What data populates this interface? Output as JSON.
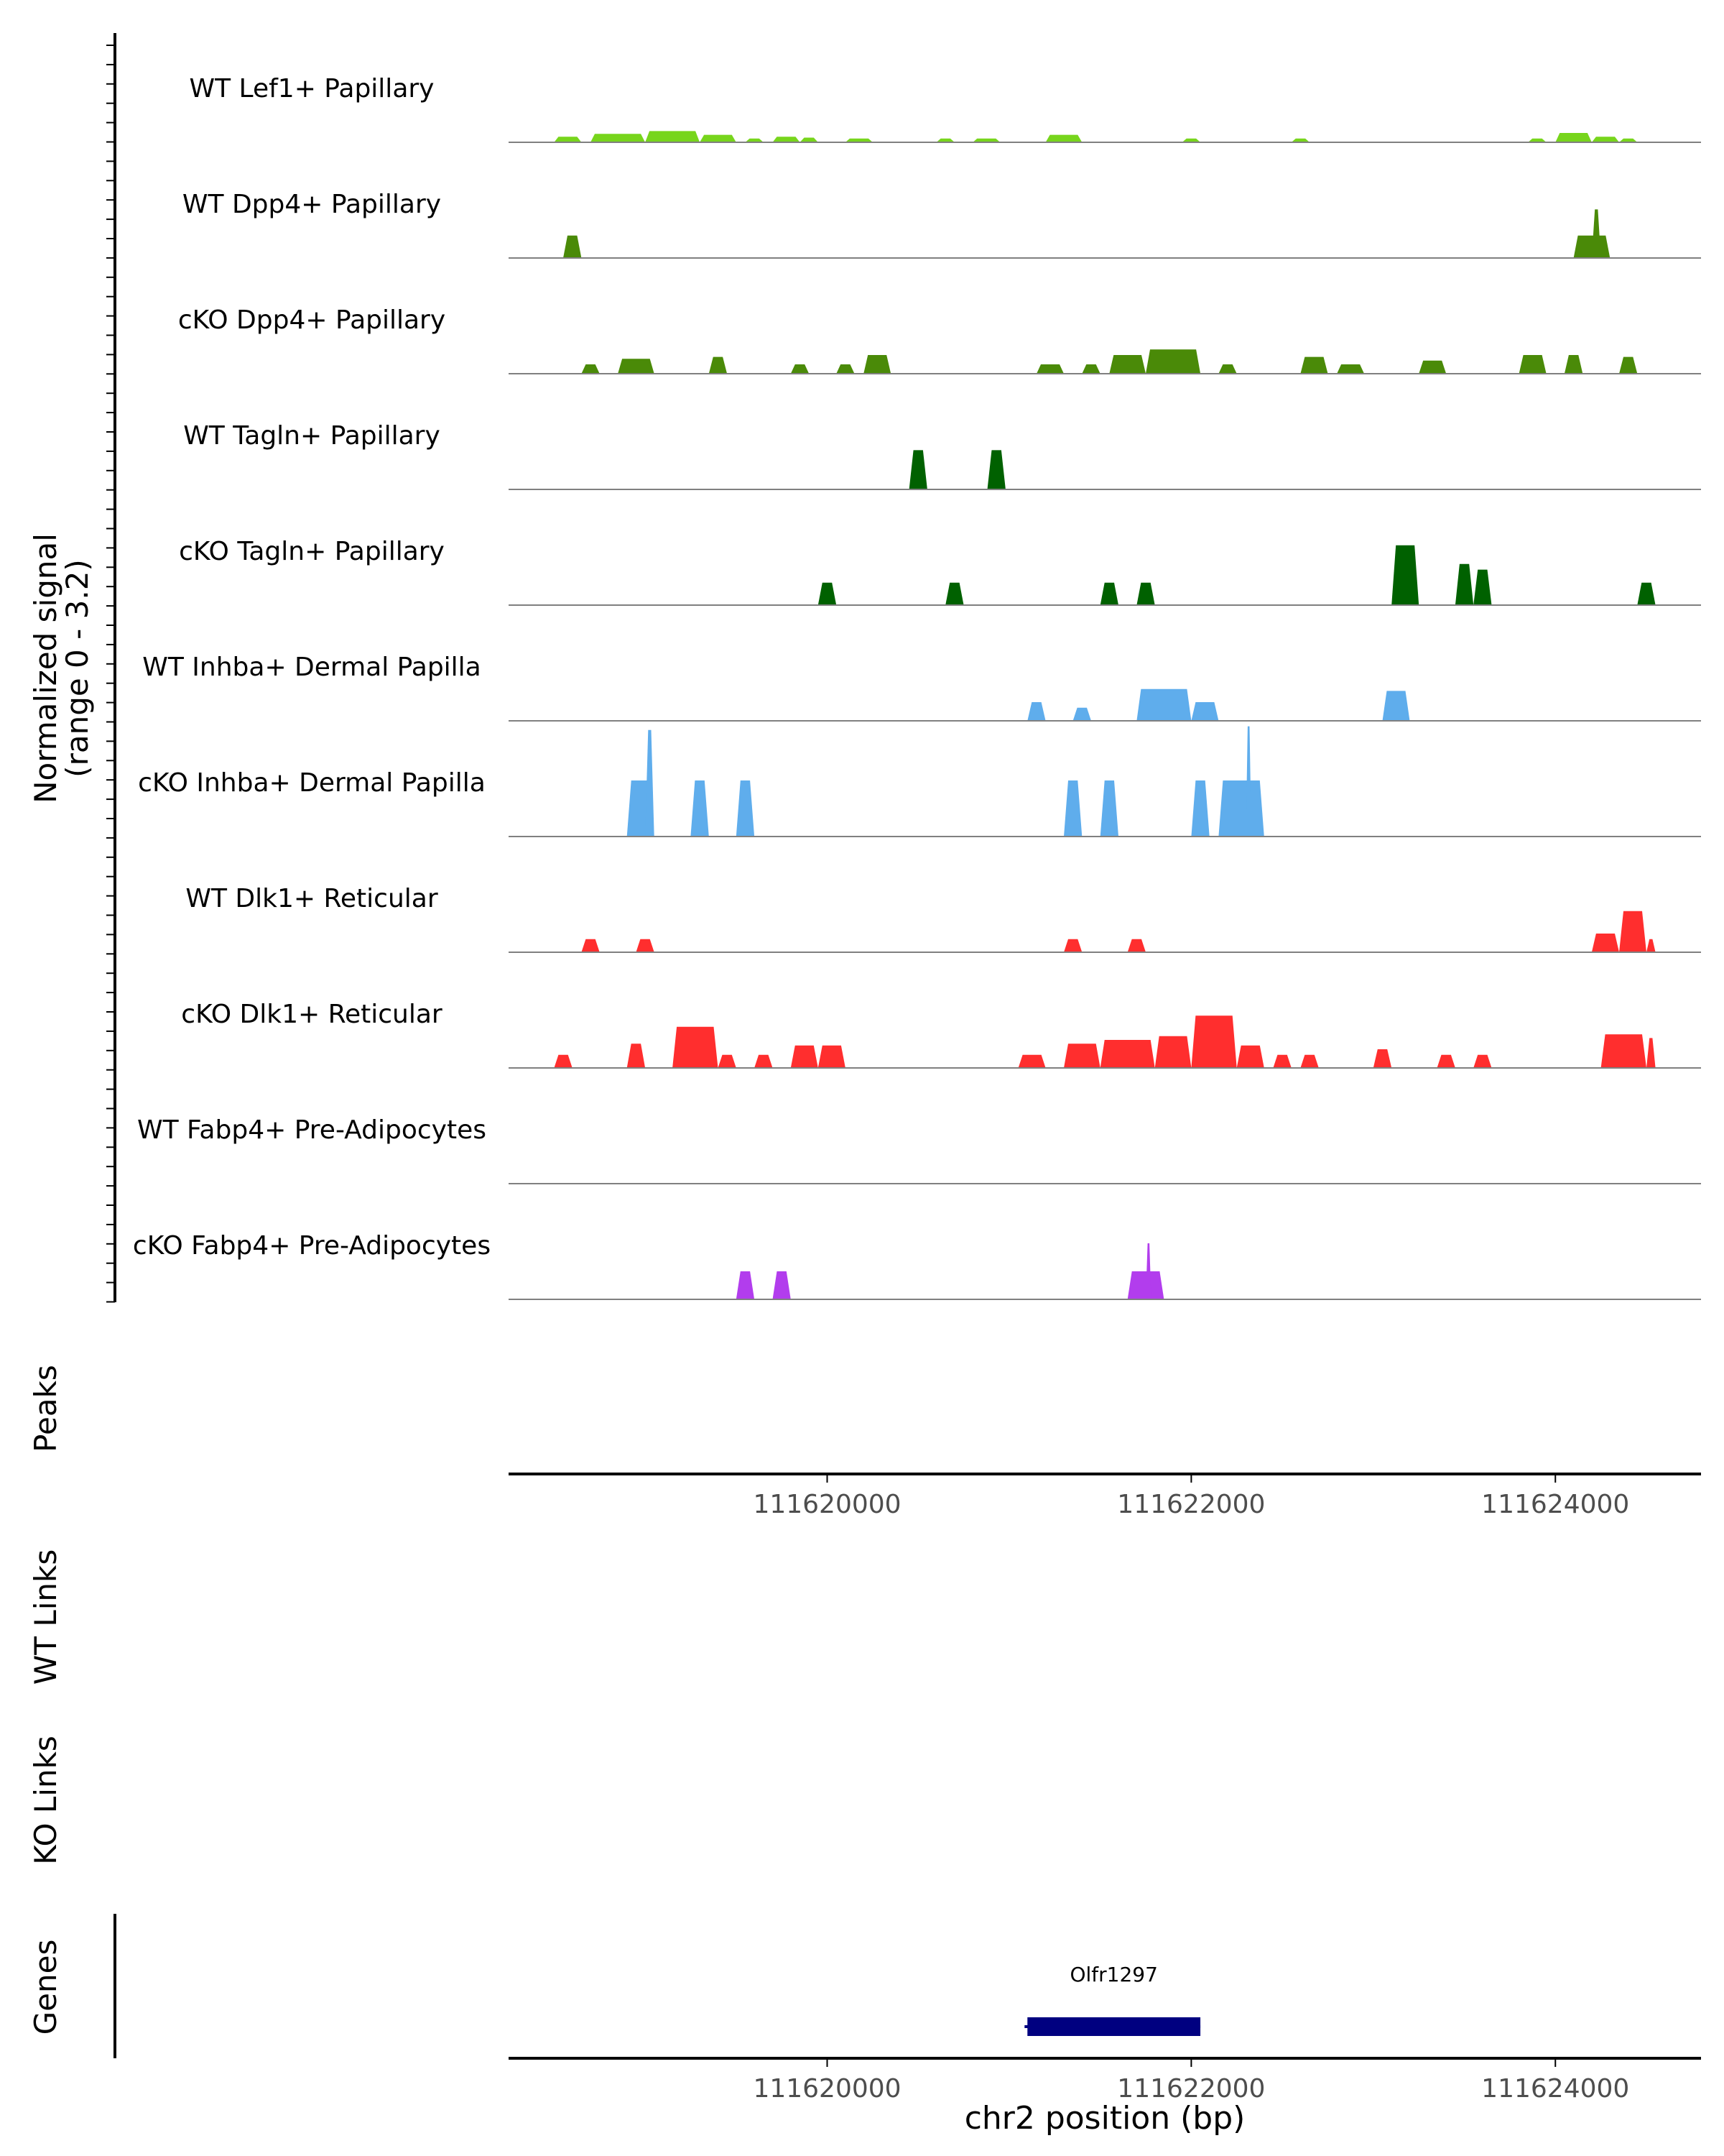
{
  "chart_data": {
    "type": "area",
    "title": "",
    "region": "chr2",
    "xlabel": "chr2 position (bp)",
    "xlim": [
      111618250,
      111624800
    ],
    "x_ticks": [
      111620000,
      111622000,
      111624000
    ],
    "x_tick_labels": [
      "111620000",
      "111622000",
      "111624000"
    ],
    "ylabel_line1": "Normalized signal",
    "ylabel_line2": "(range 0 - 3.2)",
    "ylim": [
      0,
      3.2
    ],
    "tracks": [
      {
        "name": "WT Lef1+ Papillary",
        "color": "#77d51c",
        "peaks": [
          [
            111618500,
            111618650,
            0.3
          ],
          [
            111618700,
            111619000,
            0.45
          ],
          [
            111619000,
            111619300,
            0.6
          ],
          [
            111619300,
            111619500,
            0.4
          ],
          [
            111619550,
            111619650,
            0.2
          ],
          [
            111619700,
            111619850,
            0.3
          ],
          [
            111619850,
            111619950,
            0.25
          ],
          [
            111620100,
            111620250,
            0.2
          ],
          [
            111620600,
            111620700,
            0.2
          ],
          [
            111620800,
            111620950,
            0.2
          ],
          [
            111621200,
            111621400,
            0.4
          ],
          [
            111621950,
            111622050,
            0.2
          ],
          [
            111622550,
            111622650,
            0.2
          ],
          [
            111623850,
            111623950,
            0.2
          ],
          [
            111624000,
            111624200,
            0.5
          ],
          [
            111624200,
            111624350,
            0.3
          ],
          [
            111624350,
            111624450,
            0.2
          ]
        ]
      },
      {
        "name": "WT Dpp4+ Papillary",
        "color": "#4a8a08",
        "peaks": [
          [
            111618550,
            111618650,
            1.2
          ],
          [
            111624100,
            111624300,
            1.2
          ],
          [
            111624200,
            111624250,
            2.6
          ]
        ]
      },
      {
        "name": "cKO Dpp4+ Papillary",
        "color": "#4a8a08",
        "peaks": [
          [
            111618650,
            111618750,
            0.5
          ],
          [
            111618850,
            111619050,
            0.8
          ],
          [
            111619350,
            111619450,
            0.9
          ],
          [
            111619800,
            111619900,
            0.5
          ],
          [
            111620050,
            111620150,
            0.5
          ],
          [
            111620200,
            111620350,
            1.0
          ],
          [
            111621150,
            111621300,
            0.5
          ],
          [
            111621400,
            111621500,
            0.5
          ],
          [
            111621550,
            111621750,
            1.0
          ],
          [
            111621750,
            111622050,
            1.3
          ],
          [
            111622150,
            111622250,
            0.5
          ],
          [
            111622600,
            111622750,
            0.9
          ],
          [
            111622800,
            111622950,
            0.5
          ],
          [
            111623250,
            111623400,
            0.7
          ],
          [
            111623800,
            111623950,
            1.0
          ],
          [
            111624050,
            111624150,
            1.0
          ],
          [
            111624350,
            111624450,
            0.9
          ]
        ]
      },
      {
        "name": "WT Tagln+ Papillary",
        "color": "#006100",
        "peaks": [
          [
            111620450,
            111620550,
            2.1
          ],
          [
            111620880,
            111620980,
            2.1
          ]
        ]
      },
      {
        "name": "cKO Tagln+ Papillary",
        "color": "#006100",
        "peaks": [
          [
            111619950,
            111620050,
            1.2
          ],
          [
            111620650,
            111620750,
            1.2
          ],
          [
            111621500,
            111621600,
            1.2
          ],
          [
            111621700,
            111621800,
            1.2
          ],
          [
            111623100,
            111623250,
            3.2
          ],
          [
            111623450,
            111623550,
            2.2
          ],
          [
            111623550,
            111623650,
            1.9
          ],
          [
            111624450,
            111624550,
            1.2
          ]
        ]
      },
      {
        "name": "WT Inhba+ Dermal Papilla",
        "color": "#5fadec",
        "peaks": [
          [
            111621100,
            111621200,
            1.0
          ],
          [
            111621350,
            111621450,
            0.7
          ],
          [
            111621700,
            111622000,
            1.7
          ],
          [
            111622000,
            111622150,
            1.0
          ],
          [
            111623050,
            111623200,
            1.6
          ]
        ]
      },
      {
        "name": "cKO Inhba+ Dermal Papilla",
        "color": "#5fadec",
        "peaks": [
          [
            111618900,
            111619050,
            3.0
          ],
          [
            111619000,
            111619050,
            5.7
          ],
          [
            111619250,
            111619350,
            3.0
          ],
          [
            111619500,
            111619600,
            3.0
          ],
          [
            111621300,
            111621400,
            3.0
          ],
          [
            111621500,
            111621600,
            3.0
          ],
          [
            111622000,
            111622100,
            3.0
          ],
          [
            111622150,
            111622400,
            3.0
          ],
          [
            111622300,
            111622330,
            5.9
          ]
        ]
      },
      {
        "name": "WT Dlk1+ Reticular",
        "color": "#ff2e2e",
        "peaks": [
          [
            111618650,
            111618750,
            0.7
          ],
          [
            111618950,
            111619050,
            0.7
          ],
          [
            111621300,
            111621400,
            0.7
          ],
          [
            111621650,
            111621750,
            0.7
          ],
          [
            111624200,
            111624350,
            1.0
          ],
          [
            111624350,
            111624500,
            2.2
          ],
          [
            111624500,
            111624550,
            0.7
          ]
        ]
      },
      {
        "name": "cKO Dlk1+ Reticular",
        "color": "#ff2e2e",
        "peaks": [
          [
            111618500,
            111618600,
            0.7
          ],
          [
            111618900,
            111619000,
            1.3
          ],
          [
            111619150,
            111619400,
            2.2
          ],
          [
            111619400,
            111619500,
            0.7
          ],
          [
            111619600,
            111619700,
            0.7
          ],
          [
            111619800,
            111619950,
            1.2
          ],
          [
            111619950,
            111620100,
            1.2
          ],
          [
            111621050,
            111621200,
            0.7
          ],
          [
            111621300,
            111621500,
            1.3
          ],
          [
            111621500,
            111621800,
            1.5
          ],
          [
            111621800,
            111622000,
            1.7
          ],
          [
            111622000,
            111622250,
            2.8
          ],
          [
            111622250,
            111622400,
            1.2
          ],
          [
            111622450,
            111622550,
            0.7
          ],
          [
            111622600,
            111622700,
            0.7
          ],
          [
            111623000,
            111623100,
            1.0
          ],
          [
            111623350,
            111623450,
            0.7
          ],
          [
            111623550,
            111623650,
            0.7
          ],
          [
            111624250,
            111624500,
            1.8
          ],
          [
            111624500,
            111624550,
            1.6
          ]
        ]
      },
      {
        "name": "WT Fabp4+ Pre-Adipocytes",
        "color": "#b23ded",
        "peaks": []
      },
      {
        "name": "cKO Fabp4+ Pre-Adipocytes",
        "color": "#b23ded",
        "peaks": [
          [
            111619500,
            111619600,
            1.5
          ],
          [
            111619700,
            111619800,
            1.5
          ],
          [
            111621650,
            111621850,
            1.5
          ],
          [
            111621750,
            111621780,
            3.0
          ]
        ]
      }
    ],
    "annotation_tracks": [
      "Peaks",
      "WT Links",
      "KO Links",
      "Genes"
    ],
    "genes": [
      {
        "name": "Olfr1297",
        "start": 111621100,
        "end": 111622050,
        "color": "#000080"
      }
    ]
  }
}
